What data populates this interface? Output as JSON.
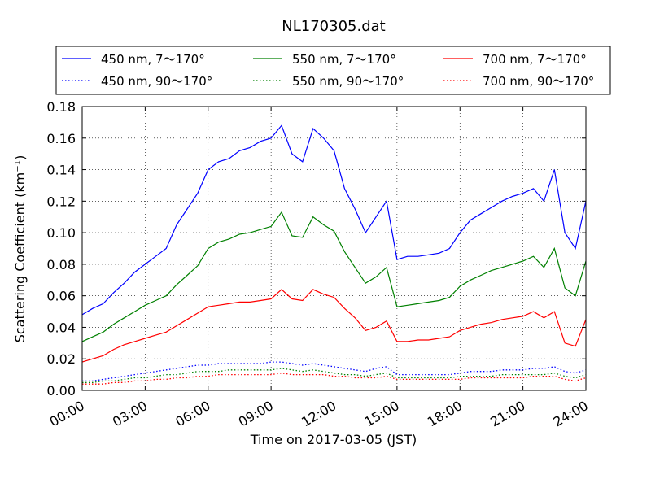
{
  "chart_data": {
    "type": "line",
    "title": "NL170305.dat",
    "xlabel": "Time on 2017-03-05 (JST)",
    "ylabel": "Scattering Coefficient (km⁻¹)",
    "xlim": [
      0,
      24
    ],
    "ylim": [
      0,
      0.18
    ],
    "grid": true,
    "legend_position": "top (above plot)",
    "x_ticks": [
      "00:00",
      "03:00",
      "06:00",
      "09:00",
      "12:00",
      "15:00",
      "18:00",
      "21:00",
      "24:00"
    ],
    "y_ticks": [
      "0.00",
      "0.02",
      "0.04",
      "0.06",
      "0.08",
      "0.10",
      "0.12",
      "0.14",
      "0.16",
      "0.18"
    ],
    "x": [
      0,
      0.5,
      1,
      1.5,
      2,
      2.5,
      3,
      3.5,
      4,
      4.5,
      5,
      5.5,
      6,
      6.5,
      7,
      7.5,
      8,
      8.5,
      9,
      9.5,
      10,
      10.5,
      11,
      11.5,
      12,
      12.5,
      13,
      13.5,
      14,
      14.5,
      15,
      15.5,
      16,
      16.5,
      17,
      17.5,
      18,
      18.5,
      19,
      19.5,
      20,
      20.5,
      21,
      21.5,
      22,
      22.5,
      23,
      23.5,
      24
    ],
    "series": [
      {
        "name": "450 nm, 7～170°",
        "color": "#0000ff",
        "style": "solid",
        "values": [
          0.048,
          0.052,
          0.055,
          0.062,
          0.068,
          0.075,
          0.08,
          0.085,
          0.09,
          0.105,
          0.115,
          0.125,
          0.14,
          0.145,
          0.147,
          0.152,
          0.154,
          0.158,
          0.16,
          0.168,
          0.15,
          0.145,
          0.166,
          0.16,
          0.152,
          0.128,
          0.115,
          0.1,
          0.11,
          0.12,
          0.083,
          0.085,
          0.085,
          0.086,
          0.087,
          0.09,
          0.1,
          0.108,
          0.112,
          0.116,
          0.12,
          0.123,
          0.125,
          0.128,
          0.12,
          0.14,
          0.1,
          0.09,
          0.12
        ]
      },
      {
        "name": "450 nm, 90～170°",
        "color": "#0000ff",
        "style": "dotted",
        "values": [
          0.006,
          0.006,
          0.007,
          0.008,
          0.009,
          0.01,
          0.011,
          0.012,
          0.013,
          0.014,
          0.015,
          0.016,
          0.016,
          0.017,
          0.017,
          0.017,
          0.017,
          0.017,
          0.018,
          0.018,
          0.017,
          0.016,
          0.017,
          0.016,
          0.015,
          0.014,
          0.013,
          0.012,
          0.014,
          0.015,
          0.01,
          0.01,
          0.01,
          0.01,
          0.01,
          0.01,
          0.011,
          0.012,
          0.012,
          0.012,
          0.013,
          0.013,
          0.013,
          0.014,
          0.014,
          0.015,
          0.012,
          0.011,
          0.013
        ]
      },
      {
        "name": "550 nm, 7～170°",
        "color": "#008000",
        "style": "solid",
        "values": [
          0.031,
          0.034,
          0.037,
          0.042,
          0.046,
          0.05,
          0.054,
          0.057,
          0.06,
          0.067,
          0.073,
          0.079,
          0.09,
          0.094,
          0.096,
          0.099,
          0.1,
          0.102,
          0.104,
          0.113,
          0.098,
          0.097,
          0.11,
          0.105,
          0.101,
          0.088,
          0.078,
          0.068,
          0.072,
          0.078,
          0.053,
          0.054,
          0.055,
          0.056,
          0.057,
          0.059,
          0.066,
          0.07,
          0.073,
          0.076,
          0.078,
          0.08,
          0.082,
          0.085,
          0.078,
          0.09,
          0.065,
          0.06,
          0.082
        ]
      },
      {
        "name": "550 nm, 90～170°",
        "color": "#008000",
        "style": "dotted",
        "values": [
          0.005,
          0.005,
          0.006,
          0.006,
          0.007,
          0.008,
          0.008,
          0.009,
          0.01,
          0.01,
          0.011,
          0.012,
          0.012,
          0.012,
          0.013,
          0.013,
          0.013,
          0.013,
          0.013,
          0.014,
          0.013,
          0.012,
          0.013,
          0.012,
          0.011,
          0.01,
          0.01,
          0.009,
          0.01,
          0.011,
          0.008,
          0.008,
          0.008,
          0.008,
          0.008,
          0.008,
          0.009,
          0.009,
          0.009,
          0.009,
          0.01,
          0.01,
          0.01,
          0.01,
          0.01,
          0.011,
          0.009,
          0.008,
          0.01
        ]
      },
      {
        "name": "700 nm, 7～170°",
        "color": "#ff0000",
        "style": "solid",
        "values": [
          0.018,
          0.02,
          0.022,
          0.026,
          0.029,
          0.031,
          0.033,
          0.035,
          0.037,
          0.041,
          0.045,
          0.049,
          0.053,
          0.054,
          0.055,
          0.056,
          0.056,
          0.057,
          0.058,
          0.064,
          0.058,
          0.057,
          0.064,
          0.061,
          0.059,
          0.052,
          0.046,
          0.038,
          0.04,
          0.044,
          0.031,
          0.031,
          0.032,
          0.032,
          0.033,
          0.034,
          0.038,
          0.04,
          0.042,
          0.043,
          0.045,
          0.046,
          0.047,
          0.05,
          0.046,
          0.05,
          0.03,
          0.028,
          0.045
        ]
      },
      {
        "name": "700 nm, 90～170°",
        "color": "#ff0000",
        "style": "dotted",
        "values": [
          0.004,
          0.004,
          0.004,
          0.005,
          0.005,
          0.006,
          0.006,
          0.007,
          0.007,
          0.008,
          0.008,
          0.009,
          0.009,
          0.01,
          0.01,
          0.01,
          0.01,
          0.01,
          0.01,
          0.011,
          0.01,
          0.01,
          0.01,
          0.01,
          0.009,
          0.009,
          0.008,
          0.008,
          0.008,
          0.009,
          0.007,
          0.007,
          0.007,
          0.007,
          0.007,
          0.007,
          0.007,
          0.008,
          0.008,
          0.008,
          0.008,
          0.008,
          0.008,
          0.009,
          0.009,
          0.009,
          0.007,
          0.006,
          0.008
        ]
      }
    ]
  }
}
